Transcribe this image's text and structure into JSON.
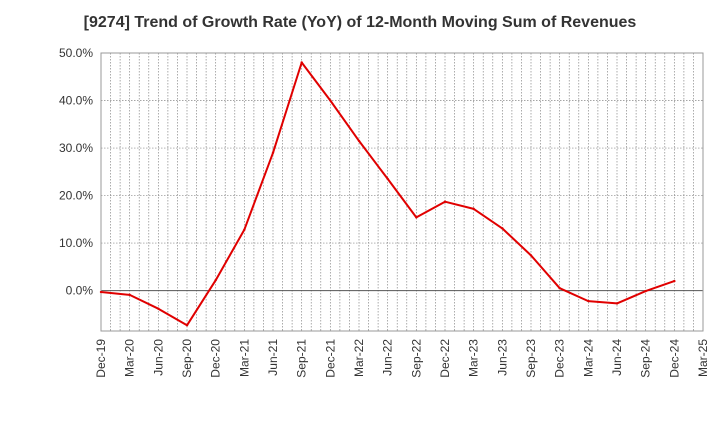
{
  "chart_data": {
    "type": "line",
    "title": "[9274]  Trend of Growth Rate (YoY) of 12-Month Moving Sum of Revenues",
    "xlabel": "",
    "ylabel": "",
    "ylim": [
      -8.5,
      50
    ],
    "yticks": [
      0,
      10,
      20,
      30,
      40,
      50
    ],
    "ytick_labels": [
      "0.0%",
      "10.0%",
      "20.0%",
      "30.0%",
      "40.0%",
      "50.0%"
    ],
    "x_categories": [
      "Dec-19",
      "Mar-20",
      "Jun-20",
      "Sep-20",
      "Dec-20",
      "Mar-21",
      "Jun-21",
      "Sep-21",
      "Dec-21",
      "Mar-22",
      "Jun-22",
      "Sep-22",
      "Dec-22",
      "Mar-23",
      "Jun-23",
      "Sep-23",
      "Dec-23",
      "Mar-24",
      "Jun-24",
      "Sep-24",
      "Dec-24",
      "Mar-25"
    ],
    "grid": true,
    "series": [
      {
        "color": "#e00000",
        "values": [
          -0.3,
          -0.9,
          -3.8,
          -7.3,
          2.2,
          12.8,
          29.0,
          48.0,
          40.0,
          31.5,
          23.5,
          15.4,
          18.7,
          17.2,
          13.1,
          7.4,
          0.5,
          -2.2,
          -2.7,
          -0.1,
          2.0,
          null
        ]
      }
    ]
  }
}
